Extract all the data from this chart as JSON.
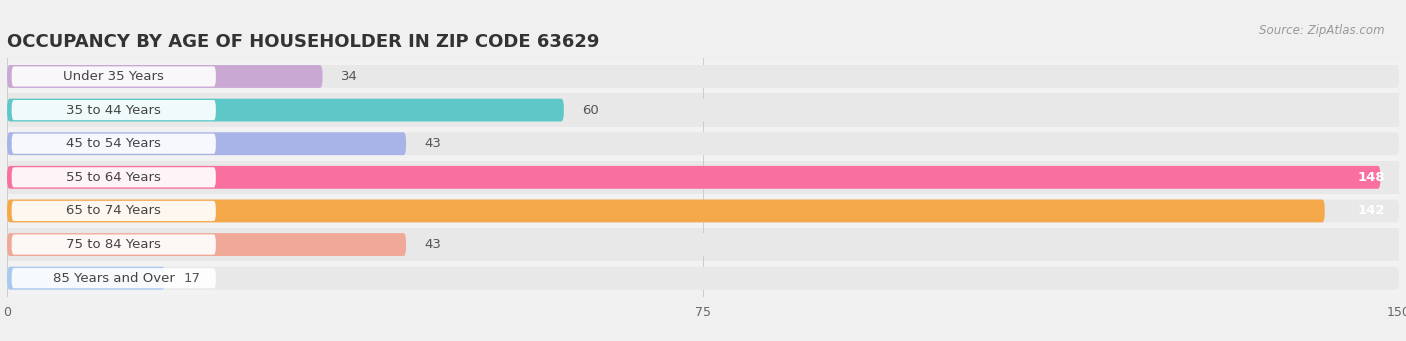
{
  "title": "OCCUPANCY BY AGE OF HOUSEHOLDER IN ZIP CODE 63629",
  "source": "Source: ZipAtlas.com",
  "categories": [
    "Under 35 Years",
    "35 to 44 Years",
    "45 to 54 Years",
    "55 to 64 Years",
    "65 to 74 Years",
    "75 to 84 Years",
    "85 Years and Over"
  ],
  "values": [
    34,
    60,
    43,
    148,
    142,
    43,
    17
  ],
  "bar_colors": [
    "#c9a8d4",
    "#5ec8c8",
    "#a8b4e8",
    "#f86fa0",
    "#f5a84a",
    "#f0a898",
    "#a8c8f0"
  ],
  "bar_bg_color": "#e8e8e8",
  "row_bg_colors": [
    "#f2f2f2",
    "#e8e8e8"
  ],
  "xlim": [
    0,
    150
  ],
  "xticks": [
    0,
    75,
    150
  ],
  "title_fontsize": 13,
  "label_fontsize": 9.5,
  "value_fontsize": 9.5,
  "bg_color": "#f0f0f0",
  "bar_height": 0.68,
  "label_pill_color": "#ffffff",
  "label_text_color": "#444444",
  "value_color_inside": "#ffffff",
  "value_color_outside": "#555555"
}
